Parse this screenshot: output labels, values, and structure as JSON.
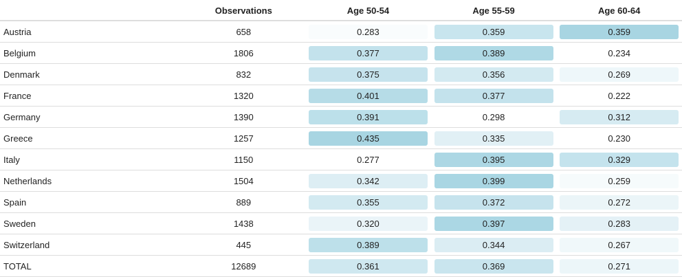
{
  "header": {
    "country": "",
    "observations": "Observations",
    "age1": "Age 50-54",
    "age2": "Age 55-59",
    "age3": "Age 60-64"
  },
  "rows": [
    {
      "country": "Austria",
      "obs": "658",
      "a1": {
        "v": "0.283",
        "bg": "#f9fcfd"
      },
      "a2": {
        "v": "0.359",
        "bg": "#c8e5ee"
      },
      "a3": {
        "v": "0.359",
        "bg": "#a8d5e2"
      }
    },
    {
      "country": "Belgium",
      "obs": "1806",
      "a1": {
        "v": "0.377",
        "bg": "#c3e2ec"
      },
      "a2": {
        "v": "0.389",
        "bg": "#afd9e5"
      },
      "a3": {
        "v": "0.234",
        "bg": "#ffffff"
      }
    },
    {
      "country": "Denmark",
      "obs": "832",
      "a1": {
        "v": "0.375",
        "bg": "#c6e3ed"
      },
      "a2": {
        "v": "0.356",
        "bg": "#d3eaf1"
      },
      "a3": {
        "v": "0.269",
        "bg": "#eef7fa"
      }
    },
    {
      "country": "France",
      "obs": "1320",
      "a1": {
        "v": "0.401",
        "bg": "#b6dce7"
      },
      "a2": {
        "v": "0.377",
        "bg": "#c3e2ec"
      },
      "a3": {
        "v": "0.222",
        "bg": "#ffffff"
      }
    },
    {
      "country": "Germany",
      "obs": "1390",
      "a1": {
        "v": "0.391",
        "bg": "#bce0ea"
      },
      "a2": {
        "v": "0.298",
        "bg": "#ffffff"
      },
      "a3": {
        "v": "0.312",
        "bg": "#d6ebf2"
      }
    },
    {
      "country": "Greece",
      "obs": "1257",
      "a1": {
        "v": "0.435",
        "bg": "#a8d5e2"
      },
      "a2": {
        "v": "0.335",
        "bg": "#e1f0f5"
      },
      "a3": {
        "v": "0.230",
        "bg": "#ffffff"
      }
    },
    {
      "country": "Italy",
      "obs": "1150",
      "a1": {
        "v": "0.277",
        "bg": "#ffffff"
      },
      "a2": {
        "v": "0.395",
        "bg": "#acd7e4"
      },
      "a3": {
        "v": "0.329",
        "bg": "#c4e3ed"
      }
    },
    {
      "country": "Netherlands",
      "obs": "1504",
      "a1": {
        "v": "0.342",
        "bg": "#ddeef4"
      },
      "a2": {
        "v": "0.399",
        "bg": "#a9d6e3"
      },
      "a3": {
        "v": "0.259",
        "bg": "#f6fbfc"
      }
    },
    {
      "country": "Spain",
      "obs": "889",
      "a1": {
        "v": "0.355",
        "bg": "#d3eaf1"
      },
      "a2": {
        "v": "0.372",
        "bg": "#c6e3ed"
      },
      "a3": {
        "v": "0.272",
        "bg": "#ebf5f8"
      }
    },
    {
      "country": "Sweden",
      "obs": "1438",
      "a1": {
        "v": "0.320",
        "bg": "#eaf4f8"
      },
      "a2": {
        "v": "0.397",
        "bg": "#abd7e4"
      },
      "a3": {
        "v": "0.283",
        "bg": "#e4f1f6"
      }
    },
    {
      "country": "Switzerland",
      "obs": "445",
      "a1": {
        "v": "0.389",
        "bg": "#bde0ea"
      },
      "a2": {
        "v": "0.344",
        "bg": "#dbedf3"
      },
      "a3": {
        "v": "0.267",
        "bg": "#f0f8fa"
      }
    },
    {
      "country": "TOTAL",
      "obs": "12689",
      "a1": {
        "v": "0.361",
        "bg": "#cfe8f0"
      },
      "a2": {
        "v": "0.369",
        "bg": "#c9e5ee"
      },
      "a3": {
        "v": "0.271",
        "bg": "#ecf6f9"
      }
    }
  ]
}
